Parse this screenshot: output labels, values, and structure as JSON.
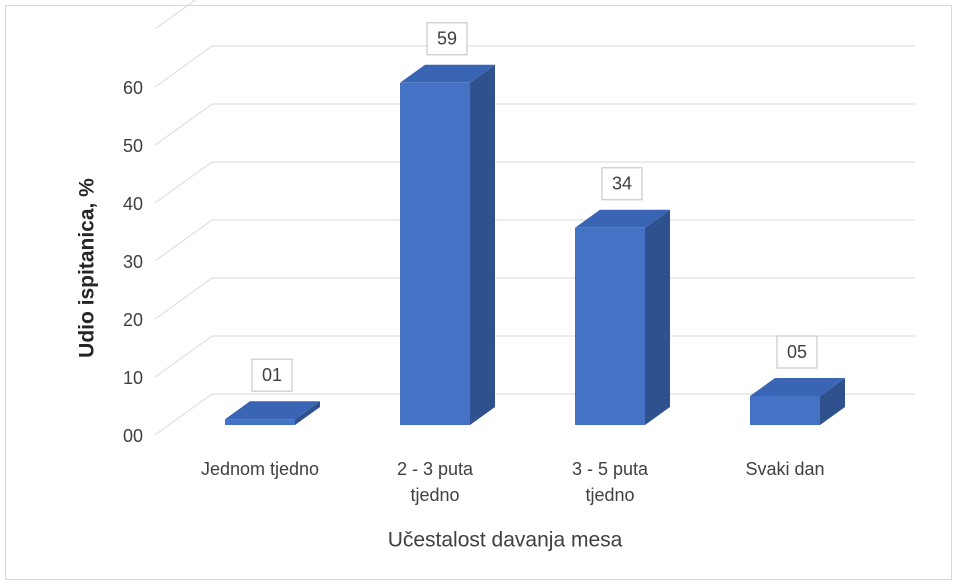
{
  "chart_data": {
    "type": "bar3d",
    "x_label": "Učestalost davanja mesa",
    "y_label": "Udio ispitanica, %",
    "categories": [
      "Jednom tjedno",
      "2 - 3 puta tjedno",
      "3 - 5 puta tjedno",
      "Svaki dan"
    ],
    "values": [
      1,
      59,
      34,
      5
    ],
    "value_labels": [
      "01",
      "59",
      "34",
      "05"
    ],
    "color": "#4472c4",
    "ylim": [
      0,
      70
    ],
    "yticks": [
      {
        "value": 0,
        "label": "00"
      },
      10,
      20,
      30,
      40,
      50,
      60
    ],
    "grid": true
  }
}
